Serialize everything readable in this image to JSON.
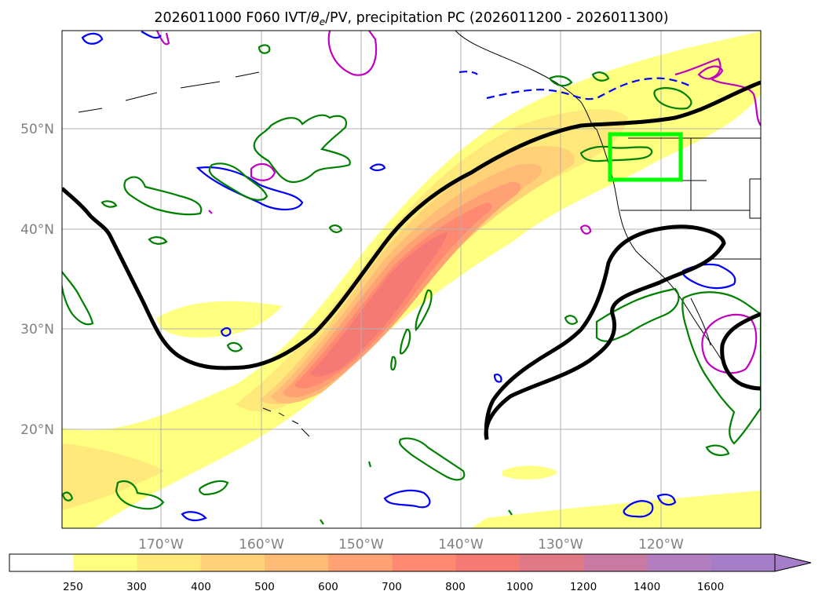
{
  "title": "2026011000 F060 IVT/θe/PV, precipitation PC (2026011200 - 2026011300)",
  "title_parts": {
    "prefix": "2026011000 F060 IVT/",
    "theta": "θ",
    "theta_sub": "e",
    "suffix": "/PV, precipitation PC (2026011200 - 2026011300)"
  },
  "map": {
    "lat_labels": [
      "50°N",
      "40°N",
      "30°N",
      "20°N"
    ],
    "lon_labels": [
      "170°W",
      "160°W",
      "150°W",
      "140°W",
      "130°W",
      "120°W"
    ],
    "highlight_box_color": "#00ff00",
    "ivt_colors": [
      "#ffff80",
      "#ffe97a",
      "#ffd278",
      "#ffbc76",
      "#ffa273",
      "#ff8a71",
      "#f57a74",
      "#e07886",
      "#c97aa2",
      "#b27ec0",
      "#a67dc8"
    ],
    "contour_colors": {
      "theta_e": "#000000",
      "pv_positive": "#008000",
      "pv_negative": "#0000ff",
      "precip": "#c000c0"
    }
  },
  "colorbar": {
    "ticks": [
      "250",
      "300",
      "400",
      "500",
      "600",
      "700",
      "800",
      "1000",
      "1200",
      "1400",
      "1600"
    ],
    "colors": [
      "#ffffff",
      "#ffff80",
      "#ffe97a",
      "#ffd278",
      "#ffbc76",
      "#ffa273",
      "#ff8a71",
      "#f57a74",
      "#e07886",
      "#c97aa2",
      "#b27ec0",
      "#a67dc8"
    ]
  }
}
